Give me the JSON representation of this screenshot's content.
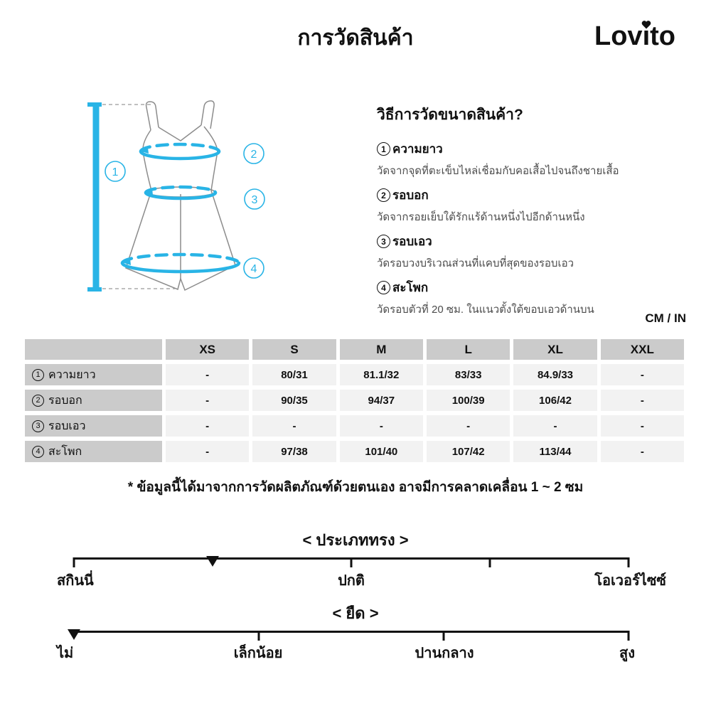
{
  "header": {
    "title": "การวัดสินค้า",
    "brand_prefix": "Lov",
    "brand_suffix": "to",
    "brand_i": "ı",
    "brand_full": "Lovito"
  },
  "diagram": {
    "callouts": [
      "1",
      "2",
      "3",
      "4"
    ]
  },
  "guide": {
    "heading": "วิธีการวัดขนาดสินค้า?",
    "items": [
      {
        "num": "1",
        "label": "ความยาว",
        "desc": "วัดจากจุดที่ตะเข็บไหล่เชื่อมกับคอเสื้อไปจนถึงชายเสื้อ"
      },
      {
        "num": "2",
        "label": "รอบอก",
        "desc": "วัดจากรอยเย็บใต้รักแร้ด้านหนึ่งไปอีกด้านหนึ่ง"
      },
      {
        "num": "3",
        "label": "รอบเอว",
        "desc": "วัดรอบวงบริเวณส่วนที่แคบที่สุดของรอบเอว"
      },
      {
        "num": "4",
        "label": "สะโพก",
        "desc": "วัดรอบตัวที่ 20 ซม. ในแนวตั้งใต้ขอบเอวด้านบน"
      }
    ]
  },
  "units_label": "CM / IN",
  "size_table": {
    "columns": [
      "XS",
      "S",
      "M",
      "L",
      "XL",
      "XXL"
    ],
    "rows": [
      {
        "num": "1",
        "label": "ความยาว",
        "values": [
          "-",
          "80/31",
          "81.1/32",
          "83/33",
          "84.9/33",
          "-"
        ]
      },
      {
        "num": "2",
        "label": "รอบอก",
        "values": [
          "-",
          "90/35",
          "94/37",
          "100/39",
          "106/42",
          "-"
        ]
      },
      {
        "num": "3",
        "label": "รอบเอว",
        "values": [
          "-",
          "-",
          "-",
          "-",
          "-",
          "-"
        ]
      },
      {
        "num": "4",
        "label": "สะโพก",
        "values": [
          "-",
          "97/38",
          "101/40",
          "107/42",
          "113/44",
          "-"
        ]
      }
    ]
  },
  "note": "* ข้อมูลนี้ได้มาจากการวัดผลิตภัณฑ์ด้วยตนเอง อาจมีการคลาดเคลื่อน 1 ~ 2 ซม",
  "scales": [
    {
      "title": "< ประเภททรง >",
      "labels": [
        "สกินนี่",
        "ปกติ",
        "โอเวอร์ไซซ์"
      ],
      "marker_pct": 25,
      "tick_pcts": [
        0,
        50,
        75,
        100
      ]
    },
    {
      "title": "< ยืด >",
      "labels": [
        "ไม่",
        "เล็กน้อย",
        "ปานกลาง",
        "สูง"
      ],
      "marker_pct": 0,
      "tick_pcts": [
        0,
        33.3,
        66.7,
        100
      ]
    }
  ],
  "colors": {
    "accent_cyan": "#29b4e6",
    "garment_outline": "#8c8c8c",
    "table_header_bg": "#cbcbcb",
    "table_cell_bg": "#f2f2f2",
    "desc_text": "#4d4d4d"
  }
}
